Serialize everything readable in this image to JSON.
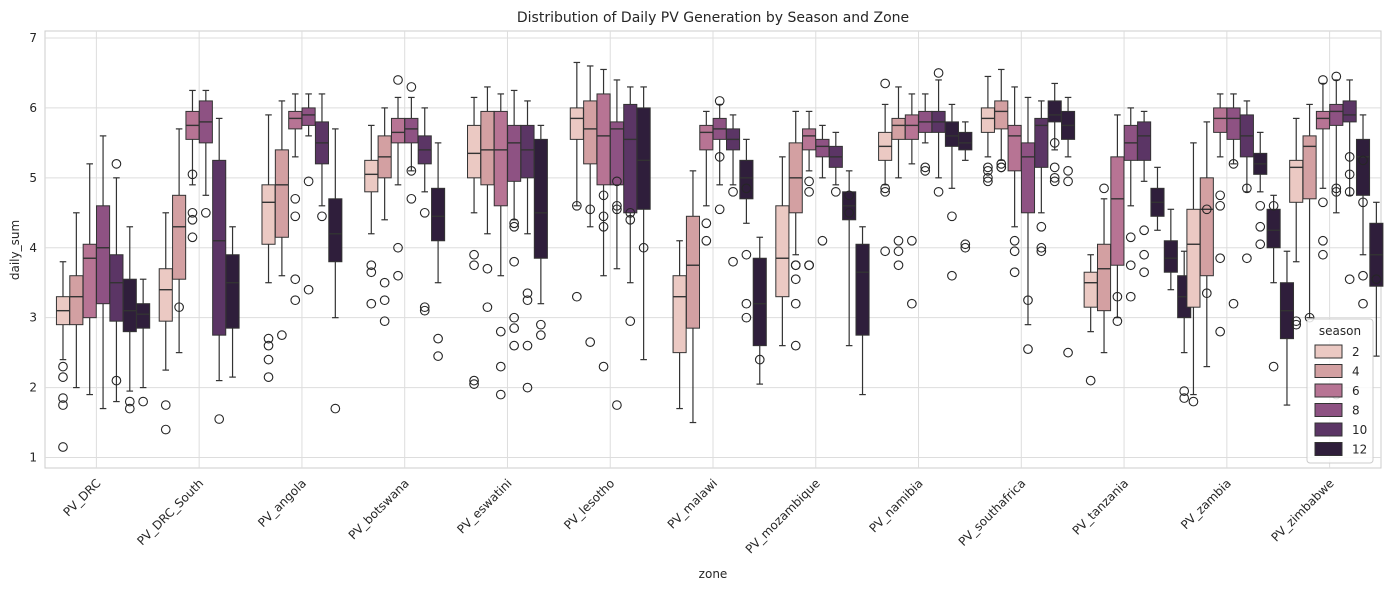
{
  "chart_data": {
    "type": "box",
    "title": "Distribution of Daily PV Generation by Season and Zone",
    "xlabel": "zone",
    "ylabel": "daily_sum",
    "ylim": [
      0.85,
      7.1
    ],
    "yticks": [
      1,
      2,
      3,
      4,
      5,
      6,
      7
    ],
    "grid": true,
    "legend": {
      "title": "season",
      "placement": "lower-right",
      "entries": [
        "2",
        "4",
        "6",
        "8",
        "10",
        "12"
      ]
    },
    "hue_colors": [
      "#ebc9c3",
      "#d3a0a2",
      "#b77494",
      "#8e5283",
      "#5b3565",
      "#2f1e3b"
    ],
    "categories": [
      "PV_DRC",
      "PV_DRC_South",
      "PV_angola",
      "PV_botswana",
      "PV_eswatini",
      "PV_lesotho",
      "PV_malawi",
      "PV_mozambique",
      "PV_namibia",
      "PV_southafrica",
      "PV_tanzania",
      "PV_zambia",
      "PV_zimbabwe"
    ],
    "boxes": [
      [
        {
          "lo": 2.4,
          "q1": 2.9,
          "med": 3.1,
          "q3": 3.3,
          "hi": 3.8,
          "out": [
            2.3,
            2.15,
            1.85,
            1.75,
            1.15
          ]
        },
        {
          "lo": 2.0,
          "q1": 2.9,
          "med": 3.3,
          "q3": 3.6,
          "hi": 4.5,
          "out": []
        },
        {
          "lo": 1.9,
          "q1": 3.0,
          "med": 3.85,
          "q3": 4.05,
          "hi": 5.2,
          "out": []
        },
        {
          "lo": 1.7,
          "q1": 3.2,
          "med": 4.0,
          "q3": 4.6,
          "hi": 5.6,
          "out": []
        },
        {
          "lo": 1.8,
          "q1": 2.95,
          "med": 3.5,
          "q3": 3.9,
          "hi": 5.0,
          "out": [
            5.2,
            2.1
          ]
        },
        {
          "lo": 1.95,
          "q1": 2.8,
          "med": 3.1,
          "q3": 3.55,
          "hi": 4.3,
          "out": [
            1.7,
            1.8
          ]
        },
        {
          "lo": 2.0,
          "q1": 2.85,
          "med": 3.05,
          "q3": 3.2,
          "hi": 3.55,
          "out": [
            1.8
          ]
        }
      ],
      [
        {
          "lo": 2.25,
          "q1": 2.95,
          "med": 3.4,
          "q3": 3.7,
          "hi": 4.5,
          "out": [
            1.75,
            1.4
          ]
        },
        {
          "lo": 2.5,
          "q1": 3.55,
          "med": 4.3,
          "q3": 4.75,
          "hi": 5.7,
          "out": [
            3.15
          ]
        },
        {
          "lo": 4.9,
          "q1": 5.55,
          "med": 5.75,
          "q3": 5.95,
          "hi": 6.25,
          "out": [
            5.05,
            4.5,
            4.4,
            4.15
          ]
        },
        {
          "lo": 4.75,
          "q1": 5.5,
          "med": 5.8,
          "q3": 6.1,
          "hi": 6.25,
          "out": [
            4.5
          ]
        },
        {
          "lo": 2.1,
          "q1": 2.75,
          "med": 4.1,
          "q3": 5.25,
          "hi": 5.85,
          "out": [
            1.55
          ]
        },
        {
          "lo": 2.15,
          "q1": 2.85,
          "med": 3.5,
          "q3": 3.9,
          "hi": 4.3,
          "out": []
        }
      ],
      [
        {
          "lo": 3.5,
          "q1": 4.05,
          "med": 4.65,
          "q3": 4.9,
          "hi": 5.9,
          "out": [
            2.7,
            2.6,
            2.4,
            2.15
          ]
        },
        {
          "lo": 3.6,
          "q1": 4.15,
          "med": 4.9,
          "q3": 5.4,
          "hi": 6.1,
          "out": [
            2.75
          ]
        },
        {
          "lo": 5.3,
          "q1": 5.7,
          "med": 5.85,
          "q3": 5.95,
          "hi": 6.2,
          "out": [
            3.55,
            3.25,
            4.45,
            4.7
          ]
        },
        {
          "lo": 5.6,
          "q1": 5.75,
          "med": 5.9,
          "q3": 6.0,
          "hi": 6.2,
          "out": [
            4.95,
            3.4
          ]
        },
        {
          "lo": 4.6,
          "q1": 5.2,
          "med": 5.5,
          "q3": 5.8,
          "hi": 6.2,
          "out": [
            4.45
          ]
        },
        {
          "lo": 3.0,
          "q1": 3.8,
          "med": 4.2,
          "q3": 4.7,
          "hi": 5.7,
          "out": [
            1.7
          ]
        }
      ],
      [
        {
          "lo": 4.2,
          "q1": 4.8,
          "med": 5.05,
          "q3": 5.25,
          "hi": 5.75,
          "out": [
            3.75,
            3.65,
            3.2
          ]
        },
        {
          "lo": 4.4,
          "q1": 5.0,
          "med": 5.3,
          "q3": 5.6,
          "hi": 6.0,
          "out": [
            3.5,
            3.25,
            2.95
          ]
        },
        {
          "lo": 4.9,
          "q1": 5.5,
          "med": 5.65,
          "q3": 5.85,
          "hi": 6.15,
          "out": [
            6.4,
            3.6,
            4.0
          ]
        },
        {
          "lo": 5.1,
          "q1": 5.5,
          "med": 5.7,
          "q3": 5.85,
          "hi": 6.15,
          "out": [
            6.3,
            5.1,
            4.7
          ]
        },
        {
          "lo": 4.8,
          "q1": 5.2,
          "med": 5.4,
          "q3": 5.6,
          "hi": 6.0,
          "out": [
            4.5,
            3.15,
            3.1
          ]
        },
        {
          "lo": 3.5,
          "q1": 4.1,
          "med": 4.45,
          "q3": 4.85,
          "hi": 5.5,
          "out": [
            2.7,
            2.45
          ]
        }
      ],
      [
        {
          "lo": 4.5,
          "q1": 5.0,
          "med": 5.35,
          "q3": 5.75,
          "hi": 6.15,
          "out": [
            3.9,
            3.75,
            2.1,
            2.05
          ]
        },
        {
          "lo": 4.2,
          "q1": 4.9,
          "med": 5.4,
          "q3": 5.95,
          "hi": 6.3,
          "out": [
            3.7,
            3.15
          ]
        },
        {
          "lo": 3.6,
          "q1": 4.6,
          "med": 5.4,
          "q3": 5.95,
          "hi": 6.2,
          "out": [
            2.8,
            2.3,
            1.9
          ]
        },
        {
          "lo": 4.4,
          "q1": 4.95,
          "med": 5.5,
          "q3": 5.75,
          "hi": 6.25,
          "out": [
            3.8,
            3.0,
            2.6,
            2.85,
            4.3,
            4.35
          ]
        },
        {
          "lo": 4.2,
          "q1": 5.0,
          "med": 5.4,
          "q3": 5.75,
          "hi": 6.1,
          "out": [
            3.25,
            3.35,
            2.6,
            2.0
          ]
        },
        {
          "lo": 3.2,
          "q1": 3.85,
          "med": 4.5,
          "q3": 5.55,
          "hi": 5.75,
          "out": [
            2.9,
            2.75
          ]
        }
      ],
      [
        {
          "lo": 4.6,
          "q1": 5.55,
          "med": 5.85,
          "q3": 6.0,
          "hi": 6.65,
          "out": [
            4.6,
            3.3
          ]
        },
        {
          "lo": 4.3,
          "q1": 5.2,
          "med": 5.7,
          "q3": 6.1,
          "hi": 6.6,
          "out": [
            4.55,
            2.65
          ]
        },
        {
          "lo": 3.6,
          "q1": 4.9,
          "med": 5.6,
          "q3": 6.2,
          "hi": 6.55,
          "out": [
            4.75,
            4.45,
            4.3,
            2.3
          ]
        },
        {
          "lo": 3.7,
          "q1": 4.9,
          "med": 5.7,
          "q3": 5.8,
          "hi": 6.4,
          "out": [
            4.6,
            4.55,
            4.95,
            1.75
          ]
        },
        {
          "lo": 3.5,
          "q1": 4.5,
          "med": 5.55,
          "q3": 6.05,
          "hi": 6.3,
          "out": [
            4.5,
            4.4,
            2.95
          ]
        },
        {
          "lo": 2.4,
          "q1": 4.55,
          "med": 5.25,
          "q3": 6.0,
          "hi": 6.3,
          "out": [
            4.0
          ]
        }
      ],
      [
        {
          "lo": 1.7,
          "q1": 2.5,
          "med": 3.3,
          "q3": 3.6,
          "hi": 4.1,
          "out": []
        },
        {
          "lo": 1.5,
          "q1": 2.85,
          "med": 3.75,
          "q3": 4.45,
          "hi": 5.1,
          "out": []
        },
        {
          "lo": 4.6,
          "q1": 5.4,
          "med": 5.65,
          "q3": 5.75,
          "hi": 5.95,
          "out": [
            4.35,
            4.1
          ]
        },
        {
          "lo": 4.9,
          "q1": 5.55,
          "med": 5.7,
          "q3": 5.85,
          "hi": 6.05,
          "out": [
            6.1,
            5.3,
            4.55
          ]
        },
        {
          "lo": 4.9,
          "q1": 5.4,
          "med": 5.55,
          "q3": 5.7,
          "hi": 5.9,
          "out": [
            3.8,
            4.8
          ]
        },
        {
          "lo": 4.35,
          "q1": 4.7,
          "med": 5.0,
          "q3": 5.25,
          "hi": 5.55,
          "out": [
            4.85,
            3.9,
            3.2,
            3.0
          ]
        },
        {
          "lo": 2.05,
          "q1": 2.6,
          "med": 3.2,
          "q3": 3.85,
          "hi": 4.15,
          "out": [
            2.4
          ]
        }
      ],
      [
        {
          "lo": 2.6,
          "q1": 3.3,
          "med": 3.85,
          "q3": 4.6,
          "hi": 5.3,
          "out": []
        },
        {
          "lo": 3.9,
          "q1": 4.5,
          "med": 5.0,
          "q3": 5.5,
          "hi": 5.95,
          "out": [
            3.75,
            3.75,
            3.55,
            3.2,
            2.6
          ]
        },
        {
          "lo": 5.1,
          "q1": 5.4,
          "med": 5.6,
          "q3": 5.7,
          "hi": 5.95,
          "out": [
            4.8,
            4.95,
            3.75,
            3.75
          ]
        },
        {
          "lo": 5.0,
          "q1": 5.3,
          "med": 5.45,
          "q3": 5.55,
          "hi": 5.75,
          "out": [
            4.1
          ]
        },
        {
          "lo": 4.9,
          "q1": 5.15,
          "med": 5.3,
          "q3": 5.45,
          "hi": 5.65,
          "out": [
            4.8
          ]
        },
        {
          "lo": 2.6,
          "q1": 4.4,
          "med": 4.6,
          "q3": 4.8,
          "hi": 5.1,
          "out": [
            4.75,
            4.5
          ]
        },
        {
          "lo": 1.9,
          "q1": 2.75,
          "med": 3.65,
          "q3": 4.05,
          "hi": 4.3,
          "out": []
        }
      ],
      [
        {
          "lo": 4.9,
          "q1": 5.25,
          "med": 5.45,
          "q3": 5.65,
          "hi": 6.05,
          "out": [
            6.35,
            4.85,
            4.8,
            3.95
          ]
        },
        {
          "lo": 5.0,
          "q1": 5.55,
          "med": 5.75,
          "q3": 5.85,
          "hi": 6.3,
          "out": [
            3.95,
            3.75,
            4.1
          ]
        },
        {
          "lo": 5.2,
          "q1": 5.55,
          "med": 5.75,
          "q3": 5.9,
          "hi": 6.2,
          "out": [
            4.1,
            3.2
          ]
        },
        {
          "lo": 5.5,
          "q1": 5.65,
          "med": 5.8,
          "q3": 5.95,
          "hi": 6.2,
          "out": [
            5.1,
            5.15
          ]
        },
        {
          "lo": 5.0,
          "q1": 5.65,
          "med": 5.8,
          "q3": 5.95,
          "hi": 6.4,
          "out": [
            6.5,
            4.8
          ]
        },
        {
          "lo": 4.85,
          "q1": 5.45,
          "med": 5.6,
          "q3": 5.8,
          "hi": 6.05,
          "out": [
            4.45,
            3.6
          ]
        },
        {
          "lo": 5.25,
          "q1": 5.4,
          "med": 5.5,
          "q3": 5.65,
          "hi": 5.8,
          "out": [
            4.05,
            4.0
          ]
        }
      ],
      [
        {
          "lo": 5.3,
          "q1": 5.65,
          "med": 5.85,
          "q3": 6.0,
          "hi": 6.45,
          "out": [
            5.15,
            5.1,
            5.0,
            4.95
          ]
        },
        {
          "lo": 5.25,
          "q1": 5.7,
          "med": 5.95,
          "q3": 6.1,
          "hi": 6.55,
          "out": [
            5.2,
            5.15,
            5.15
          ]
        },
        {
          "lo": 4.3,
          "q1": 5.1,
          "med": 5.6,
          "q3": 5.75,
          "hi": 6.3,
          "out": [
            4.1,
            3.95,
            3.65
          ]
        },
        {
          "lo": 2.9,
          "q1": 4.5,
          "med": 5.3,
          "q3": 5.5,
          "hi": 6.15,
          "out": [
            3.25,
            2.55
          ]
        },
        {
          "lo": 4.5,
          "q1": 5.15,
          "med": 5.75,
          "q3": 5.85,
          "hi": 6.1,
          "out": [
            4.3,
            4.0,
            3.95
          ]
        },
        {
          "lo": 5.4,
          "q1": 5.8,
          "med": 5.9,
          "q3": 6.1,
          "hi": 6.35,
          "out": [
            5.5,
            5.15,
            5.0,
            4.95
          ]
        },
        {
          "lo": 5.3,
          "q1": 5.55,
          "med": 5.75,
          "q3": 5.95,
          "hi": 6.15,
          "out": [
            5.1,
            4.95,
            2.5
          ]
        }
      ],
      [
        {
          "lo": 2.8,
          "q1": 3.15,
          "med": 3.5,
          "q3": 3.65,
          "hi": 3.9,
          "out": [
            2.1
          ]
        },
        {
          "lo": 2.5,
          "q1": 3.1,
          "med": 3.7,
          "q3": 4.05,
          "hi": 4.7,
          "out": [
            4.85
          ]
        },
        {
          "lo": 3.0,
          "q1": 3.75,
          "med": 4.7,
          "q3": 5.3,
          "hi": 5.9,
          "out": [
            3.3,
            2.95
          ]
        },
        {
          "lo": 4.6,
          "q1": 5.25,
          "med": 5.5,
          "q3": 5.75,
          "hi": 6.0,
          "out": [
            4.15,
            3.75,
            3.3
          ]
        },
        {
          "lo": 4.95,
          "q1": 5.25,
          "med": 5.6,
          "q3": 5.8,
          "hi": 5.95,
          "out": [
            4.25,
            3.9,
            3.65
          ]
        },
        {
          "lo": 4.25,
          "q1": 4.45,
          "med": 4.65,
          "q3": 4.85,
          "hi": 5.15,
          "out": []
        },
        {
          "lo": 3.4,
          "q1": 3.65,
          "med": 3.85,
          "q3": 4.1,
          "hi": 4.55,
          "out": []
        },
        {
          "lo": 2.5,
          "q1": 3.0,
          "med": 3.3,
          "q3": 3.6,
          "hi": 3.95,
          "out": [
            1.95,
            1.85
          ]
        }
      ],
      [
        {
          "lo": 1.9,
          "q1": 3.15,
          "med": 4.05,
          "q3": 4.55,
          "hi": 5.5,
          "out": [
            1.8
          ]
        },
        {
          "lo": 2.3,
          "q1": 3.6,
          "med": 4.55,
          "q3": 5.0,
          "hi": 5.8,
          "out": [
            4.55,
            3.35
          ]
        },
        {
          "lo": 5.3,
          "q1": 5.65,
          "med": 5.85,
          "q3": 6.0,
          "hi": 6.2,
          "out": [
            4.75,
            4.6,
            3.85,
            2.8
          ]
        },
        {
          "lo": 5.2,
          "q1": 5.55,
          "med": 5.85,
          "q3": 6.0,
          "hi": 6.2,
          "out": [
            5.2,
            3.2
          ]
        },
        {
          "lo": 4.8,
          "q1": 5.3,
          "med": 5.6,
          "q3": 5.9,
          "hi": 6.1,
          "out": [
            4.85,
            3.85
          ]
        },
        {
          "lo": 4.8,
          "q1": 5.05,
          "med": 5.2,
          "q3": 5.35,
          "hi": 5.65,
          "out": [
            4.6,
            4.3,
            4.05
          ]
        },
        {
          "lo": 3.5,
          "q1": 4.0,
          "med": 4.25,
          "q3": 4.55,
          "hi": 4.75,
          "out": [
            4.6,
            2.3
          ]
        },
        {
          "lo": 1.75,
          "q1": 2.7,
          "med": 3.1,
          "q3": 3.5,
          "hi": 3.95,
          "out": []
        }
      ],
      [
        {
          "lo": 3.8,
          "q1": 4.65,
          "med": 5.15,
          "q3": 5.25,
          "hi": 5.85,
          "out": [
            2.95,
            2.9
          ]
        },
        {
          "lo": 3.0,
          "q1": 4.7,
          "med": 5.45,
          "q3": 5.6,
          "hi": 6.05,
          "out": [
            3.0
          ]
        },
        {
          "lo": 4.85,
          "q1": 5.7,
          "med": 5.85,
          "q3": 5.95,
          "hi": 6.35,
          "out": [
            6.4,
            4.65,
            4.1,
            3.9
          ]
        },
        {
          "lo": 4.5,
          "q1": 5.75,
          "med": 5.95,
          "q3": 6.05,
          "hi": 6.4,
          "out": [
            6.45,
            4.8,
            4.85,
            1.9
          ]
        },
        {
          "lo": 4.75,
          "q1": 5.8,
          "med": 5.9,
          "q3": 6.1,
          "hi": 6.4,
          "out": [
            5.3,
            5.05,
            4.8,
            3.55
          ]
        },
        {
          "lo": 3.9,
          "q1": 4.75,
          "med": 5.3,
          "q3": 5.55,
          "hi": 5.9,
          "out": [
            5.25,
            4.65,
            3.6,
            3.2
          ]
        },
        {
          "lo": 2.45,
          "q1": 3.45,
          "med": 3.9,
          "q3": 4.35,
          "hi": 4.65,
          "out": [
            3.55
          ]
        }
      ]
    ]
  }
}
